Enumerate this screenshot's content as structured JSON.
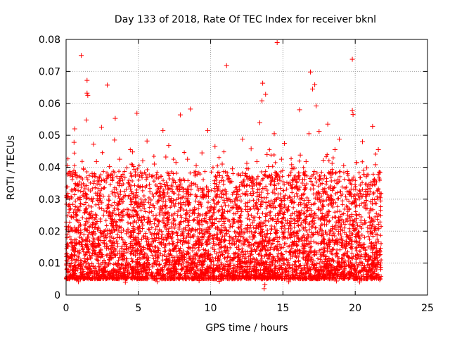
{
  "chart_data": {
    "type": "scatter",
    "title": "Day 133 of 2018, Rate Of TEC Index for receiver bknl",
    "xlabel": "GPS time / hours",
    "ylabel": "ROTI / TECUs",
    "xlim": [
      0,
      25
    ],
    "ylim": [
      0,
      0.08
    ],
    "x_ticks": [
      0,
      5,
      10,
      15,
      20,
      25
    ],
    "y_ticks": [
      0,
      0.01,
      0.02,
      0.03,
      0.04,
      0.05,
      0.06,
      0.07,
      0.08
    ],
    "x_tick_labels": [
      "0",
      "5",
      "10",
      "15",
      "20",
      "25"
    ],
    "y_tick_labels": [
      "0",
      "0.01",
      "0.02",
      "0.03",
      "0.04",
      "0.05",
      "0.06",
      "0.07",
      "0.08"
    ],
    "grid": true,
    "marker": "plus",
    "color": "#ff0000",
    "x_data_range": [
      0.0,
      21.8
    ],
    "typical_band": [
      0.005,
      0.03
    ],
    "points": [
      [
        1.05,
        0.075
      ],
      [
        14.6,
        0.079
      ],
      [
        11.1,
        0.0718
      ],
      [
        19.8,
        0.0738
      ],
      [
        16.9,
        0.0698
      ],
      [
        1.45,
        0.0672
      ],
      [
        2.85,
        0.0657
      ],
      [
        13.6,
        0.0663
      ],
      [
        17.2,
        0.0658
      ],
      [
        17.05,
        0.0645
      ],
      [
        1.45,
        0.0632
      ],
      [
        1.5,
        0.0625
      ],
      [
        13.8,
        0.0628
      ],
      [
        13.55,
        0.0608
      ],
      [
        17.3,
        0.0592
      ],
      [
        16.15,
        0.058
      ],
      [
        8.6,
        0.0582
      ],
      [
        19.8,
        0.0578
      ],
      [
        19.85,
        0.0565
      ],
      [
        4.9,
        0.0569
      ],
      [
        3.4,
        0.0553
      ],
      [
        7.9,
        0.0564
      ],
      [
        13.4,
        0.0539
      ],
      [
        1.4,
        0.0548
      ],
      [
        18.1,
        0.0535
      ],
      [
        21.2,
        0.0528
      ],
      [
        0.6,
        0.052
      ],
      [
        2.45,
        0.0525
      ],
      [
        6.7,
        0.0515
      ],
      [
        9.8,
        0.0515
      ],
      [
        17.5,
        0.0512
      ],
      [
        16.8,
        0.0505
      ],
      [
        14.4,
        0.0505
      ],
      [
        12.2,
        0.0488
      ],
      [
        5.6,
        0.0482
      ],
      [
        3.35,
        0.0485
      ],
      [
        18.9,
        0.0488
      ],
      [
        20.5,
        0.048
      ],
      [
        0.55,
        0.0478
      ],
      [
        1.9,
        0.0472
      ],
      [
        15.1,
        0.0475
      ],
      [
        7.1,
        0.0468
      ],
      [
        10.3,
        0.0465
      ],
      [
        12.8,
        0.0458
      ],
      [
        18.6,
        0.0455
      ],
      [
        21.6,
        0.0455
      ],
      [
        4.6,
        0.0448
      ],
      [
        9.4,
        0.0445
      ],
      [
        13.9,
        0.044
      ],
      [
        16.2,
        0.0438
      ],
      [
        0.1,
        0.0405
      ],
      [
        0.2,
        0.0382
      ],
      [
        1.2,
        0.0395
      ],
      [
        2.1,
        0.0418
      ],
      [
        3.0,
        0.0402
      ],
      [
        3.7,
        0.0425
      ],
      [
        4.2,
        0.0398
      ],
      [
        5.3,
        0.042
      ],
      [
        6.1,
        0.041
      ],
      [
        6.9,
        0.0432
      ],
      [
        7.6,
        0.0415
      ],
      [
        8.4,
        0.0425
      ],
      [
        9.0,
        0.0405
      ],
      [
        10.8,
        0.041
      ],
      [
        11.5,
        0.0395
      ],
      [
        12.5,
        0.0412
      ],
      [
        13.2,
        0.0418
      ],
      [
        14.0,
        0.0402
      ],
      [
        14.9,
        0.0425
      ],
      [
        15.6,
        0.0408
      ],
      [
        16.6,
        0.0418
      ],
      [
        17.8,
        0.0422
      ],
      [
        18.4,
        0.0412
      ],
      [
        19.2,
        0.0405
      ],
      [
        20.1,
        0.0415
      ],
      [
        20.8,
        0.0398
      ],
      [
        21.4,
        0.0408
      ],
      [
        13.7,
        0.002
      ],
      [
        13.75,
        0.0032
      ],
      [
        0.85,
        0.0042
      ],
      [
        4.1,
        0.004
      ],
      [
        6.3,
        0.0042
      ],
      [
        9.2,
        0.0045
      ],
      [
        10.6,
        0.0043
      ],
      [
        15.4,
        0.0042
      ],
      [
        18.7,
        0.0044
      ],
      [
        20.3,
        0.0041
      ],
      [
        21.7,
        0.0048
      ]
    ]
  }
}
